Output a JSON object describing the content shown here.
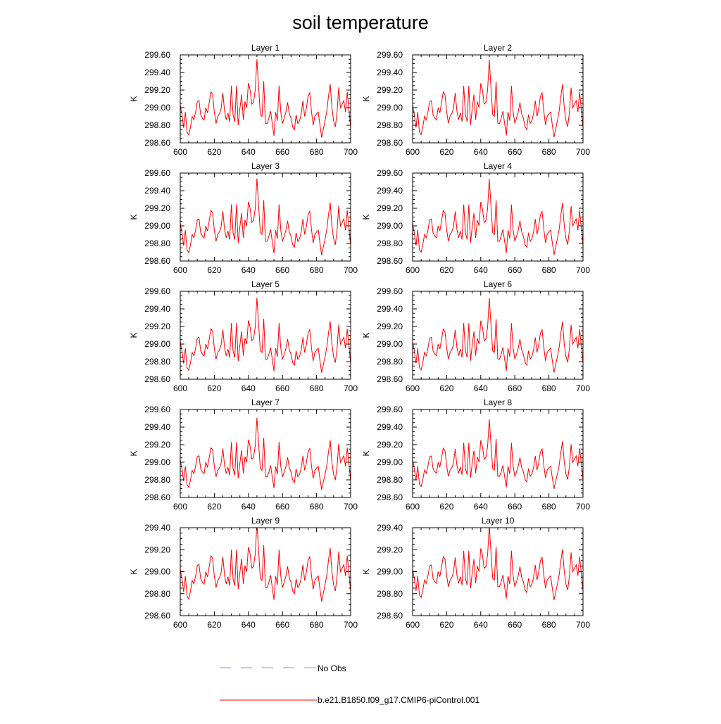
{
  "title": "soil temperature",
  "chart_data": {
    "type": "line",
    "title": "soil temperature",
    "xlim": [
      600,
      700
    ],
    "x_ticks": [
      600,
      620,
      640,
      660,
      680,
      700
    ],
    "x_tick_labels": [
      "600",
      "620",
      "640",
      "660",
      "680",
      "700"
    ],
    "ylabel": "K",
    "line_color": "#ff0000",
    "obs_color": "#8899cc",
    "panels": [
      {
        "name": "Layer 1",
        "ylim": [
          298.6,
          299.6
        ],
        "y_ticks": [
          298.6,
          298.8,
          299.0,
          299.2,
          299.4,
          299.6
        ],
        "y_tick_labels": [
          "298.60",
          "298.80",
          "299.00",
          "299.20",
          "299.40",
          "299.60"
        ],
        "amp": 1.0,
        "offset": 0.0
      },
      {
        "name": "Layer 2",
        "ylim": [
          298.6,
          299.6
        ],
        "y_ticks": [
          298.6,
          298.8,
          299.0,
          299.2,
          299.4,
          299.6
        ],
        "y_tick_labels": [
          "298.60",
          "298.80",
          "299.00",
          "299.20",
          "299.40",
          "299.60"
        ],
        "amp": 0.99,
        "offset": 0.0
      },
      {
        "name": "Layer 3",
        "ylim": [
          298.6,
          299.6
        ],
        "y_ticks": [
          298.6,
          298.8,
          299.0,
          299.2,
          299.4,
          299.6
        ],
        "y_tick_labels": [
          "298.60",
          "298.80",
          "299.00",
          "299.20",
          "299.40",
          "299.60"
        ],
        "amp": 0.98,
        "offset": 0.0
      },
      {
        "name": "Layer 4",
        "ylim": [
          298.6,
          299.6
        ],
        "y_ticks": [
          298.6,
          298.8,
          299.0,
          299.2,
          299.4,
          299.6
        ],
        "y_tick_labels": [
          "298.60",
          "298.80",
          "299.00",
          "299.20",
          "299.40",
          "299.60"
        ],
        "amp": 0.97,
        "offset": 0.0
      },
      {
        "name": "Layer 5",
        "ylim": [
          298.6,
          299.6
        ],
        "y_ticks": [
          298.6,
          298.8,
          299.0,
          299.2,
          299.4,
          299.6
        ],
        "y_tick_labels": [
          "298.60",
          "298.80",
          "299.00",
          "299.20",
          "299.40",
          "299.60"
        ],
        "amp": 0.96,
        "offset": 0.0
      },
      {
        "name": "Layer 6",
        "ylim": [
          298.6,
          299.6
        ],
        "y_ticks": [
          298.6,
          298.8,
          299.0,
          299.2,
          299.4,
          299.6
        ],
        "y_tick_labels": [
          "298.60",
          "298.80",
          "299.00",
          "299.20",
          "299.40",
          "299.60"
        ],
        "amp": 0.95,
        "offset": 0.0
      },
      {
        "name": "Layer 7",
        "ylim": [
          298.6,
          299.6
        ],
        "y_ticks": [
          298.6,
          298.8,
          299.0,
          299.2,
          299.4,
          299.6
        ],
        "y_tick_labels": [
          "298.60",
          "298.80",
          "299.00",
          "299.20",
          "299.40",
          "299.60"
        ],
        "amp": 0.92,
        "offset": 0.0
      },
      {
        "name": "Layer 8",
        "ylim": [
          298.6,
          299.6
        ],
        "y_ticks": [
          298.6,
          298.8,
          299.0,
          299.2,
          299.4,
          299.6
        ],
        "y_tick_labels": [
          "298.60",
          "298.80",
          "299.00",
          "299.20",
          "299.40",
          "299.60"
        ],
        "amp": 0.89,
        "offset": 0.0
      },
      {
        "name": "Layer 9",
        "ylim": [
          298.6,
          299.4
        ],
        "y_ticks": [
          298.6,
          298.8,
          299.0,
          299.2,
          299.4
        ],
        "y_tick_labels": [
          "298.60",
          "298.80",
          "299.00",
          "299.20",
          "299.40"
        ],
        "amp": 0.8,
        "offset": 0.0
      },
      {
        "name": "Layer 10",
        "ylim": [
          298.6,
          299.4
        ],
        "y_ticks": [
          298.6,
          298.8,
          299.0,
          299.2,
          299.4
        ],
        "y_tick_labels": [
          "298.60",
          "298.80",
          "299.00",
          "299.20",
          "299.40"
        ],
        "amp": 0.76,
        "offset": 0.0
      }
    ],
    "base_series": {
      "x": [
        600,
        601,
        602,
        603,
        604,
        605,
        606,
        607,
        608,
        609,
        610,
        611,
        612,
        613,
        614,
        615,
        616,
        617,
        618,
        619,
        620,
        621,
        622,
        623,
        624,
        625,
        626,
        627,
        628,
        629,
        630,
        631,
        632,
        633,
        634,
        635,
        636,
        637,
        638,
        639,
        640,
        641,
        642,
        643,
        644,
        645,
        646,
        647,
        648,
        649,
        650,
        651,
        652,
        653,
        654,
        655,
        656,
        657,
        658,
        659,
        660,
        661,
        662,
        663,
        664,
        665,
        666,
        667,
        668,
        669,
        670,
        671,
        672,
        673,
        674,
        675,
        676,
        677,
        678,
        679,
        680,
        681,
        682,
        683,
        684,
        685,
        686,
        687,
        688,
        689,
        690,
        691,
        692,
        693,
        694,
        695,
        696,
        697,
        698,
        699,
        700
      ],
      "y": [
        299.03,
        298.92,
        298.77,
        298.95,
        298.72,
        298.69,
        298.78,
        298.9,
        298.86,
        298.95,
        299.07,
        299.08,
        298.92,
        298.88,
        298.86,
        299.0,
        298.94,
        299.06,
        299.18,
        299.15,
        298.95,
        298.82,
        298.9,
        298.93,
        298.99,
        299.17,
        298.96,
        298.86,
        298.94,
        298.84,
        299.25,
        298.92,
        298.84,
        299.25,
        298.8,
        298.99,
        299.15,
        298.86,
        299.07,
        299.0,
        299.28,
        299.2,
        299.04,
        299.06,
        299.2,
        299.55,
        299.23,
        298.92,
        298.9,
        299.3,
        298.82,
        298.82,
        298.88,
        298.96,
        298.82,
        298.68,
        298.95,
        298.85,
        299.25,
        298.95,
        298.82,
        298.88,
        298.95,
        299.06,
        298.93,
        298.88,
        298.78,
        298.75,
        298.92,
        298.82,
        298.85,
        298.93,
        299.08,
        298.9,
        298.99,
        299.13,
        299.17,
        298.96,
        298.8,
        298.9,
        298.93,
        298.95,
        298.8,
        298.66,
        298.76,
        298.85,
        298.96,
        299.13,
        299.27,
        299.0,
        298.85,
        298.78,
        298.94,
        299.23,
        299.0,
        299.04,
        299.08,
        298.95,
        299.18,
        298.98,
        298.77
      ]
    },
    "legend": [
      {
        "label": "No Obs",
        "style": "dashed",
        "color": "#8899cc"
      },
      {
        "label": "b.e21.B1850.f09_g17.CMIP6-piControl.001",
        "style": "solid",
        "color": "#ff0000"
      }
    ]
  }
}
